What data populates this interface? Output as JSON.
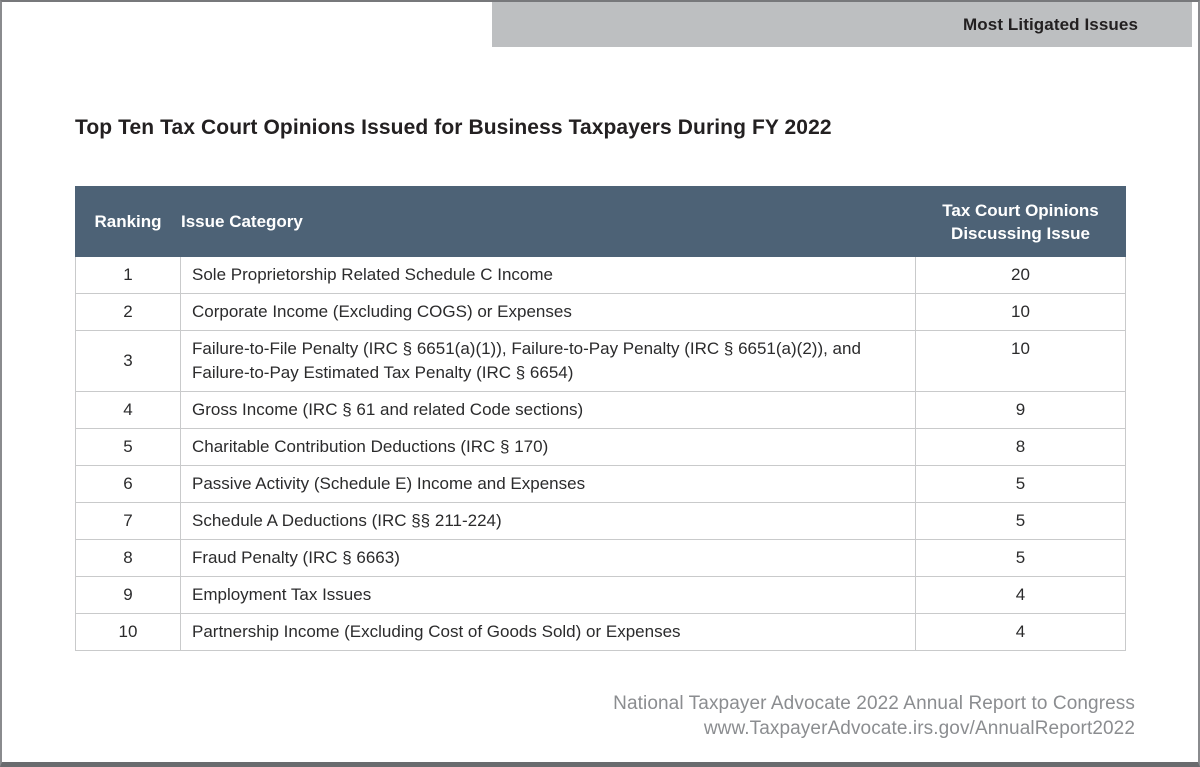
{
  "banner": {
    "label": "Most Litigated Issues"
  },
  "title": "Top Ten Tax Court Opinions Issued for Business Taxpayers During FY 2022",
  "table": {
    "columns": {
      "ranking": "Ranking",
      "issue": "Issue Category",
      "opinions": "Tax Court Opinions Discussing Issue"
    },
    "rows": [
      {
        "ranking": "1",
        "issue": "Sole Proprietorship Related Schedule C Income",
        "opinions": "20"
      },
      {
        "ranking": "2",
        "issue": "Corporate Income (Excluding COGS) or Expenses",
        "opinions": "10"
      },
      {
        "ranking": "3",
        "issue": "Failure-to-File Penalty (IRC § 6651(a)(1)), Failure-to-Pay Penalty (IRC § 6651(a)(2)), and Failure-to-Pay Estimated Tax Penalty (IRC § 6654)",
        "opinions": "10"
      },
      {
        "ranking": "4",
        "issue": "Gross Income (IRC § 61 and related Code sections)",
        "opinions": "9"
      },
      {
        "ranking": "5",
        "issue": "Charitable Contribution Deductions (IRC § 170)",
        "opinions": "8"
      },
      {
        "ranking": "6",
        "issue": "Passive Activity (Schedule E) Income and Expenses",
        "opinions": "5"
      },
      {
        "ranking": "7",
        "issue": "Schedule A Deductions (IRC §§ 211-224)",
        "opinions": "5"
      },
      {
        "ranking": "8",
        "issue": "Fraud Penalty (IRC § 6663)",
        "opinions": "5"
      },
      {
        "ranking": "9",
        "issue": "Employment Tax Issues",
        "opinions": "4"
      },
      {
        "ranking": "10",
        "issue": "Partnership Income (Excluding Cost of Goods Sold) or Expenses",
        "opinions": "4"
      }
    ]
  },
  "footer": {
    "line1": "National Taxpayer Advocate 2022 Annual Report to Congress",
    "line2": "www.TaxpayerAdvocate.irs.gov/AnnualReport2022"
  },
  "colors": {
    "header_bg": "#4d6276",
    "banner_bg": "#bdbfc1",
    "body_text": "#2b2b2c",
    "footer_text": "#8b8d90",
    "grid_line": "#c9cacb",
    "bottom_bar": "#696b6e"
  }
}
